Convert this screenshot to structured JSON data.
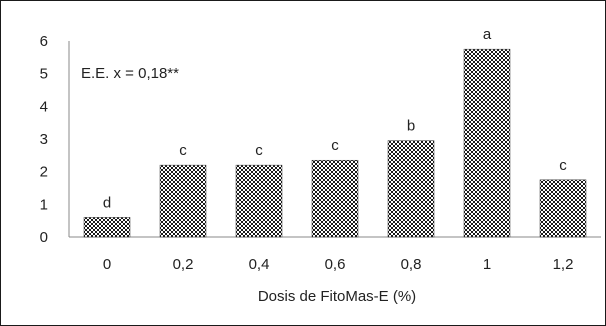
{
  "chart_data": {
    "type": "bar",
    "categories": [
      "0",
      "0,2",
      "0,4",
      "0,6",
      "0,8",
      "1",
      "1,2"
    ],
    "values": [
      0.6,
      2.2,
      2.2,
      2.35,
      2.95,
      5.75,
      1.75
    ],
    "letters": [
      "d",
      "c",
      "c",
      "c",
      "b",
      "a",
      "c"
    ],
    "xlabel": "Dosis de FitoMas-E (%)",
    "ylabel": "",
    "ylim": [
      0,
      6
    ],
    "yticks": [
      "0",
      "1",
      "2",
      "3",
      "4",
      "5",
      "6"
    ],
    "annotation": "E.E. x = 0,18**",
    "grid": false,
    "legend": "none",
    "bar_pattern": "checkered",
    "bar_color": "#1a1a1a"
  }
}
